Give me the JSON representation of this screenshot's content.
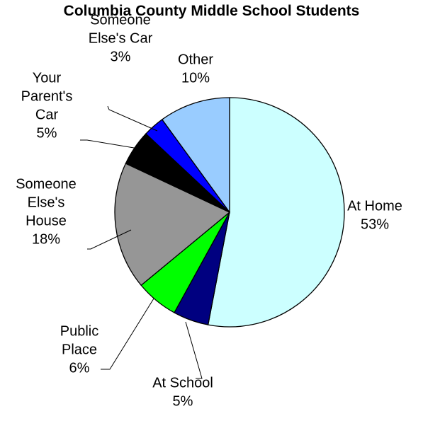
{
  "chart_data": {
    "type": "pie",
    "title": "Columbia County Middle School Students",
    "slices": [
      {
        "label_lines": [
          "At Home"
        ],
        "value": 53,
        "value_label": "53%",
        "color": "#CCFFFF"
      },
      {
        "label_lines": [
          "At School"
        ],
        "value": 5,
        "value_label": "5%",
        "color": "#000080"
      },
      {
        "label_lines": [
          "Public",
          "Place"
        ],
        "value": 6,
        "value_label": "6%",
        "color": "#00FF00"
      },
      {
        "label_lines": [
          "Someone",
          "Else's",
          "House"
        ],
        "value": 18,
        "value_label": "18%",
        "color": "#969696"
      },
      {
        "label_lines": [
          "Your",
          "Parent's",
          "Car"
        ],
        "value": 5,
        "value_label": "5%",
        "color": "#000000"
      },
      {
        "label_lines": [
          "Someone",
          "Else's Car"
        ],
        "value": 3,
        "value_label": "3%",
        "color": "#0000FF"
      },
      {
        "label_lines": [
          "Other"
        ],
        "value": 10,
        "value_label": "10%",
        "color": "#99CCFF"
      }
    ],
    "start_angle": "12 o'clock",
    "direction": "clockwise",
    "legend": "none"
  }
}
